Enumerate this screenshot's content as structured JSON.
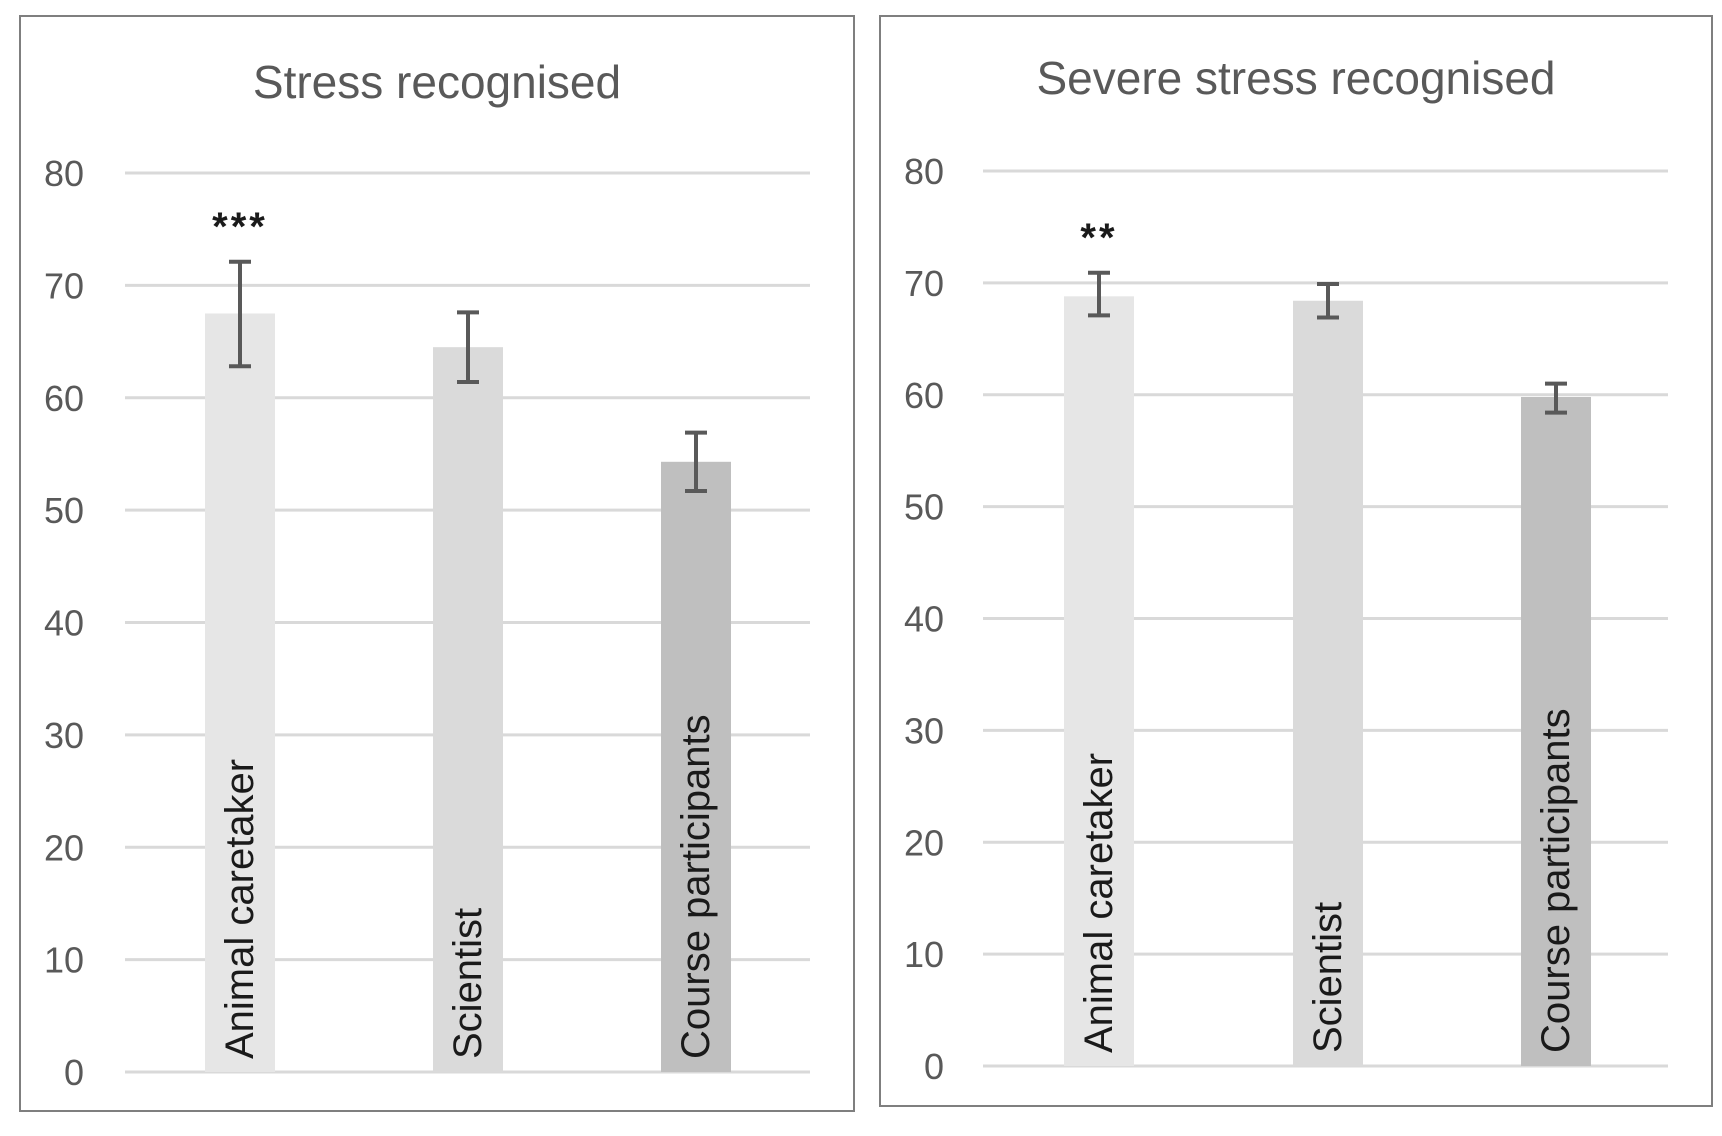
{
  "chart_data": [
    {
      "type": "bar",
      "title": "Stress recognised",
      "categories": [
        "Animal caretaker",
        "Scientist",
        "Course participants"
      ],
      "values": [
        67.5,
        64.5,
        54.3
      ],
      "error_bars": [
        [
          62.8,
          72.1
        ],
        [
          61.4,
          67.6
        ],
        [
          51.7,
          56.9
        ]
      ],
      "significance": [
        "***",
        "",
        ""
      ],
      "bar_colors": [
        "#e6e6e6",
        "#dadada",
        "#bfbfbf"
      ],
      "ylim": [
        0,
        80
      ],
      "yticks": [
        "0",
        "10",
        "20",
        "30",
        "40",
        "50",
        "60",
        "70",
        "80"
      ],
      "xlabel": "",
      "ylabel": "",
      "grid": true
    },
    {
      "type": "bar",
      "title": "Severe stress recognised",
      "categories": [
        "Animal caretaker",
        "Scientist",
        "Course participants"
      ],
      "values": [
        68.8,
        68.4,
        59.8
      ],
      "error_bars": [
        [
          67.1,
          70.9
        ],
        [
          66.9,
          69.9
        ],
        [
          58.4,
          61.0
        ]
      ],
      "significance": [
        "**",
        "",
        ""
      ],
      "bar_colors": [
        "#e6e6e6",
        "#dadada",
        "#bfbfbf"
      ],
      "ylim": [
        0,
        80
      ],
      "yticks": [
        "0",
        "10",
        "20",
        "30",
        "40",
        "50",
        "60",
        "70",
        "80"
      ],
      "xlabel": "",
      "ylabel": "",
      "grid": true
    }
  ]
}
